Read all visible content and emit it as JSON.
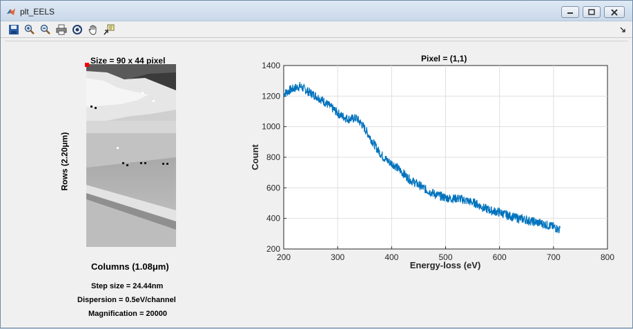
{
  "window": {
    "title": "plt_EELS"
  },
  "toolbar": {
    "buttons": [
      {
        "icon": "save-icon"
      },
      {
        "icon": "zoom-in-icon"
      },
      {
        "icon": "zoom-out-icon"
      },
      {
        "icon": "print-icon"
      },
      {
        "icon": "rotate-3d-icon"
      },
      {
        "icon": "pan-icon"
      },
      {
        "icon": "data-cursor-icon"
      }
    ]
  },
  "image_panel": {
    "title": "Size = 90 x 44 pixel",
    "ylabel": "Rows (2.20μm)",
    "xlabel": "Columns (1.08μm)",
    "step_size": "Step size = 24.44nm",
    "dispersion": "Dispersion = 0.5eV/channel",
    "magnification": "Magnification = 20000",
    "marker_color": "#ff0000"
  },
  "chart_data": {
    "type": "line",
    "title": "Pixel = (1,1)",
    "xlabel": "Energy-loss (eV)",
    "ylabel": "Count",
    "xlim": [
      200,
      800
    ],
    "ylim": [
      200,
      1400
    ],
    "xticks": [
      "200",
      "300",
      "400",
      "500",
      "600",
      "700",
      "800"
    ],
    "yticks": [
      "200",
      "400",
      "600",
      "800",
      "1000",
      "1200",
      "1400"
    ],
    "grid": true,
    "color": "#0072bd",
    "series": [
      {
        "x": [
          200,
          215,
          230,
          245,
          260,
          275,
          290,
          305,
          320,
          335,
          345,
          355,
          365,
          375,
          385,
          395,
          405,
          420,
          435,
          450,
          465,
          480,
          495,
          510,
          525,
          540,
          555,
          570,
          585,
          600,
          615,
          630,
          645,
          660,
          675,
          690,
          700,
          712
        ],
        "values": [
          1215,
          1245,
          1265,
          1230,
          1200,
          1165,
          1120,
          1075,
          1050,
          1055,
          1015,
          960,
          900,
          845,
          800,
          770,
          750,
          700,
          650,
          620,
          585,
          560,
          540,
          530,
          530,
          515,
          500,
          470,
          450,
          440,
          420,
          405,
          395,
          380,
          370,
          355,
          345,
          325
        ]
      }
    ]
  }
}
